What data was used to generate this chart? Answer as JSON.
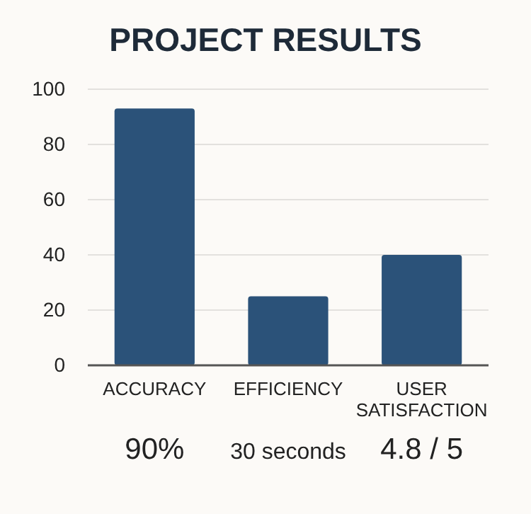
{
  "chart_data": {
    "type": "bar",
    "title": "PROJECT RESULTS",
    "categories": [
      "ACCURACY",
      "EFFICIENCY",
      "USER SATISFACTION"
    ],
    "values": [
      93,
      25,
      40
    ],
    "color": "#2b5279",
    "ylim": [
      0,
      100
    ],
    "yticks": [
      0,
      20,
      40,
      60,
      80,
      100
    ],
    "grid": "y",
    "annotations": [
      "90%",
      "30 seconds",
      "4.8 / 5"
    ]
  }
}
